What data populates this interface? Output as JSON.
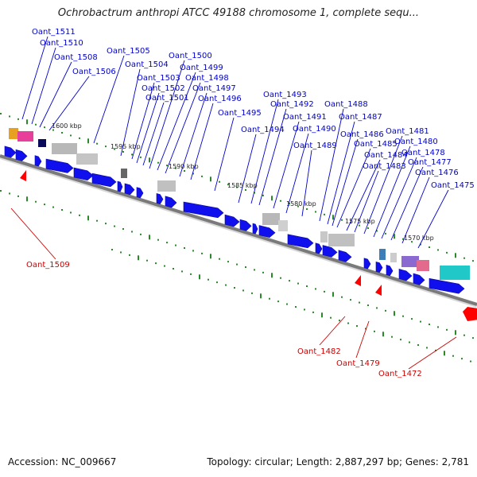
{
  "title": "Ochrobactrum anthropi ATCC 49188 chromosome 1, complete sequ...",
  "footer": {
    "accession": "Accession: NC_009667",
    "stats": "Topology: circular; Length: 2,887,297 bp; Genes: 2,781"
  },
  "colors": {
    "forward_label": "#0000cc",
    "reverse_label": "#cc0000",
    "gene_forward": "#1010ee",
    "gene_reverse": "#ff0000",
    "tick": "#2a8a2a",
    "backbone": "#777777"
  },
  "scale_labels": [
    "1600 kbp",
    "1595 kbp",
    "1590 kbp",
    "1585 kbp",
    "1580 kbp",
    "1575 kbp",
    "1570 kbp"
  ],
  "forward_labels": [
    "Oant_1511",
    "Oant_1510",
    "Oant_1508",
    "Oant_1506",
    "Oant_1505",
    "Oant_1504",
    "Oant_1503",
    "Oant_1502",
    "Oant_1501",
    "Oant_1500",
    "Oant_1499",
    "Oant_1498",
    "Oant_1497",
    "Oant_1496",
    "Oant_1495",
    "Oant_1494",
    "Oant_1493",
    "Oant_1492",
    "Oant_1491",
    "Oant_1490",
    "Oant_1489",
    "Oant_1488",
    "Oant_1487",
    "Oant_1486",
    "Oant_1485",
    "Oant_1484",
    "Oant_1483",
    "Oant_1481",
    "Oant_1480",
    "Oant_1478",
    "Oant_1477",
    "Oant_1476",
    "Oant_1475"
  ],
  "reverse_labels": [
    "Oant_1509",
    "Oant_1482",
    "Oant_1479",
    "Oant_1472"
  ]
}
